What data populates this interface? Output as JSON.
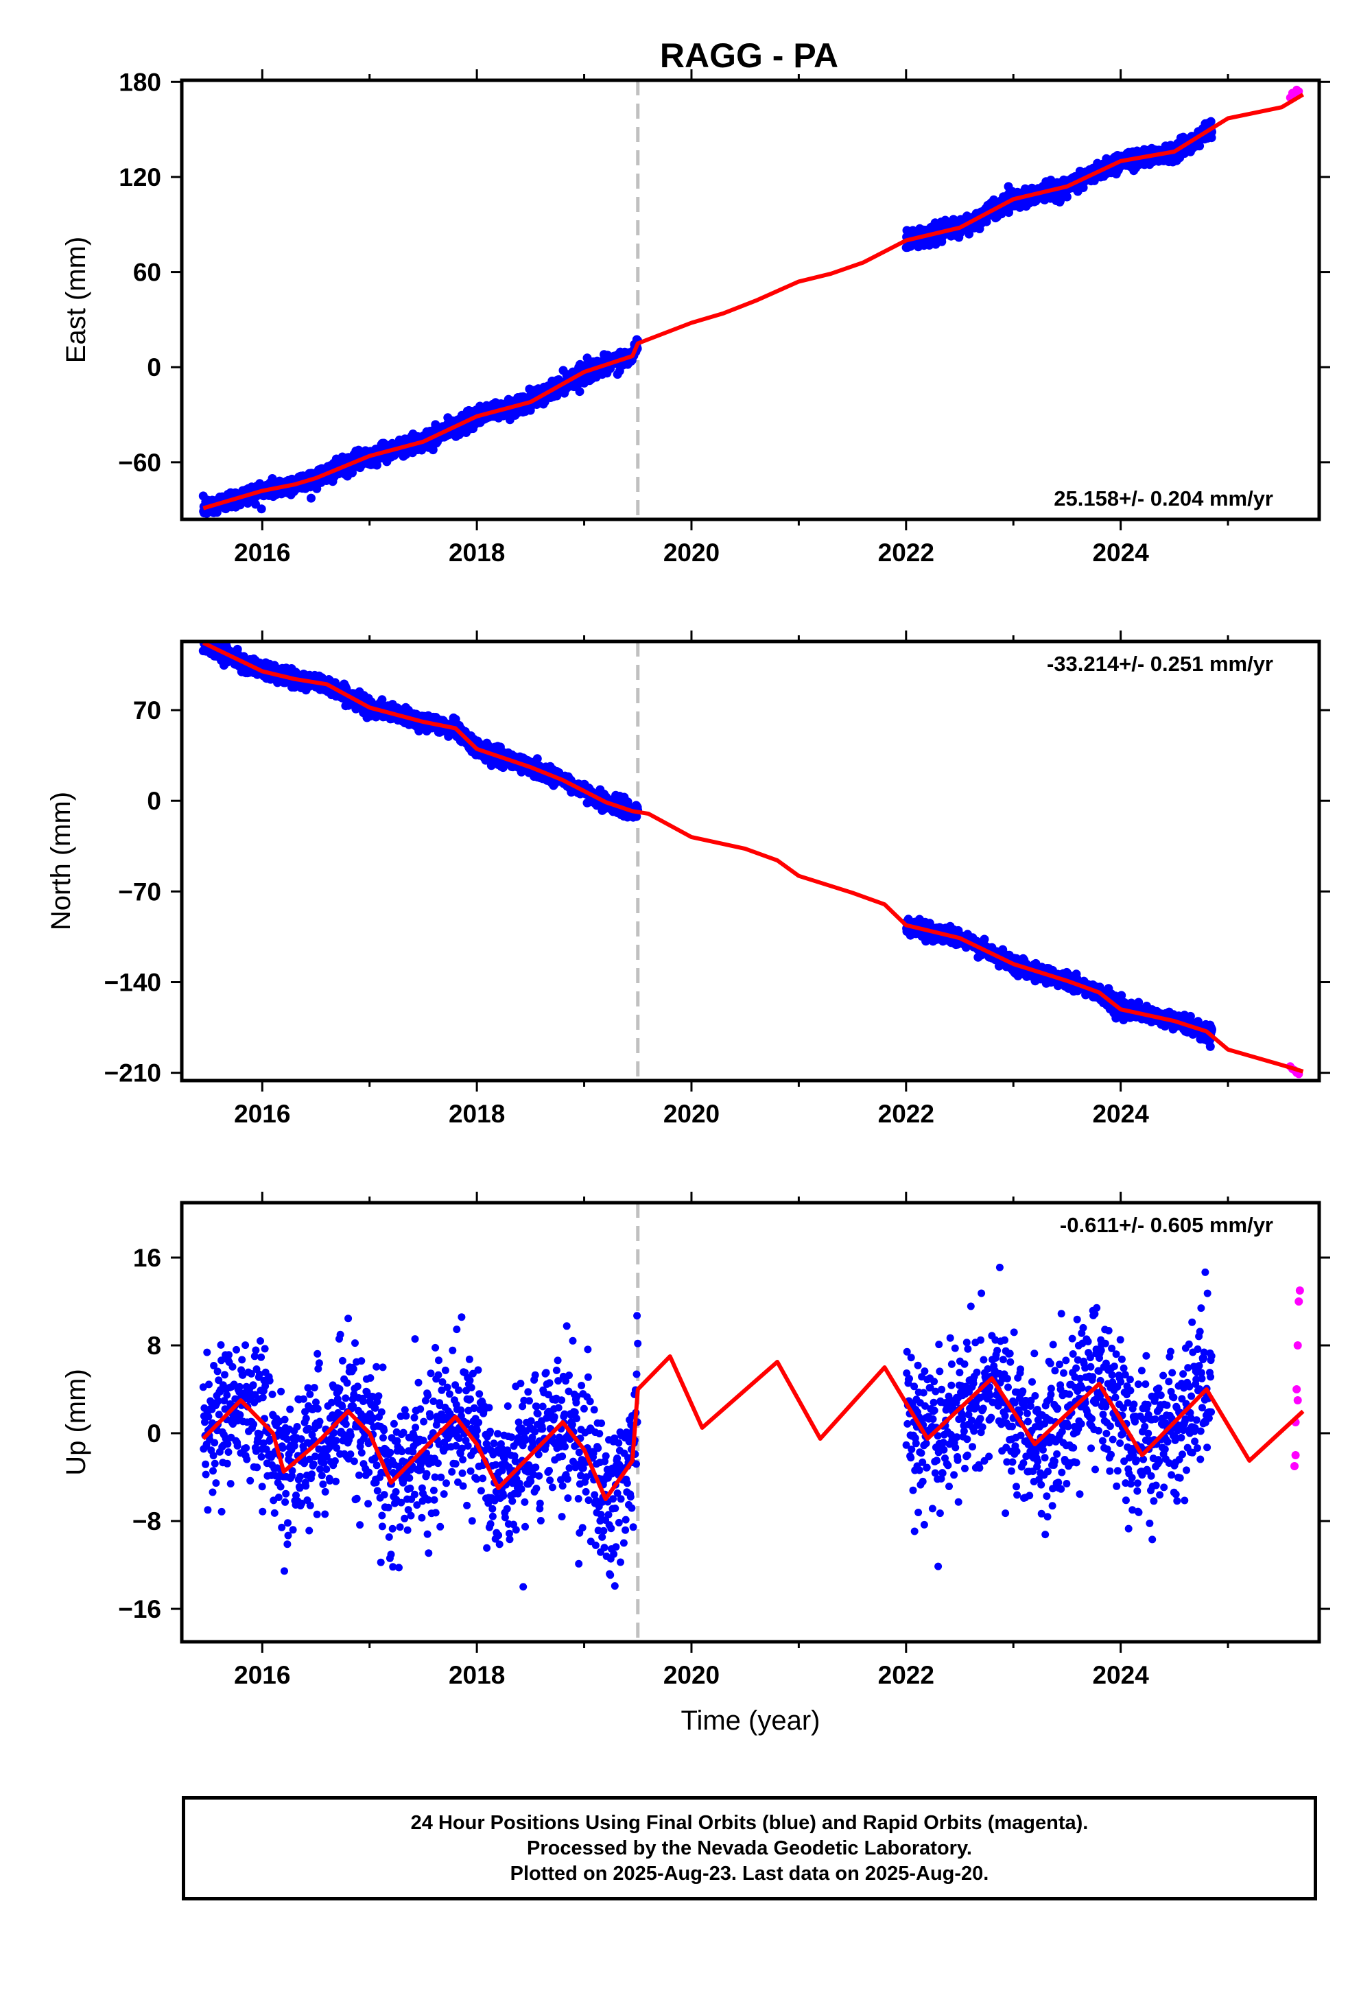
{
  "title": "RAGG - PA",
  "colors": {
    "final": "#0000ff",
    "rapid": "#ff00ff",
    "model": "#ff0000",
    "break": "#c0c0c0"
  },
  "chart_data": [
    {
      "type": "scatter",
      "name": "east",
      "ylabel": "East (mm)",
      "xlabel": "",
      "xlim": [
        2015.25,
        2025.85
      ],
      "ylim": [
        -96,
        181
      ],
      "yticks": [
        -60,
        0,
        60,
        120,
        180
      ],
      "xticks": [
        2016,
        2018,
        2020,
        2022,
        2024
      ],
      "rate_text": "25.158+/- 0.204 mm/yr",
      "rate_position": "bottom-right",
      "break_x": 2019.5,
      "gaps": [
        [
          2019.5,
          2022.0
        ],
        [
          2024.85,
          2025.55
        ]
      ],
      "model": [
        [
          2015.45,
          -89
        ],
        [
          2016.0,
          -78
        ],
        [
          2016.3,
          -74
        ],
        [
          2016.5,
          -70
        ],
        [
          2017.0,
          -56
        ],
        [
          2017.5,
          -47
        ],
        [
          2018.0,
          -31
        ],
        [
          2018.5,
          -22
        ],
        [
          2019.0,
          -3
        ],
        [
          2019.45,
          7
        ],
        [
          2019.5,
          15
        ],
        [
          2020.0,
          28
        ],
        [
          2020.3,
          34
        ],
        [
          2020.6,
          42
        ],
        [
          2021.0,
          54
        ],
        [
          2021.3,
          59
        ],
        [
          2021.6,
          66
        ],
        [
          2022.0,
          80
        ],
        [
          2022.5,
          88
        ],
        [
          2023.0,
          106
        ],
        [
          2023.5,
          114
        ],
        [
          2024.0,
          130
        ],
        [
          2024.5,
          136
        ],
        [
          2025.0,
          157
        ],
        [
          2025.5,
          164
        ],
        [
          2025.7,
          172
        ]
      ],
      "scatter_noise": 2.8,
      "rapid_points": [
        [
          2025.58,
          170
        ],
        [
          2025.6,
          173
        ],
        [
          2025.62,
          171
        ],
        [
          2025.64,
          175
        ],
        [
          2025.66,
          174
        ]
      ]
    },
    {
      "type": "scatter",
      "name": "north",
      "ylabel": "North (mm)",
      "xlabel": "",
      "xlim": [
        2015.25,
        2025.85
      ],
      "ylim": [
        -216,
        123
      ],
      "yticks": [
        -210,
        -140,
        -70,
        0,
        70
      ],
      "xticks": [
        2016,
        2018,
        2020,
        2022,
        2024
      ],
      "rate_text": "-33.214+/- 0.251 mm/yr",
      "rate_position": "top-right",
      "break_x": 2019.5,
      "gaps": [
        [
          2019.5,
          2022.0
        ],
        [
          2024.85,
          2025.55
        ]
      ],
      "model": [
        [
          2015.45,
          122
        ],
        [
          2015.7,
          112
        ],
        [
          2016.0,
          100
        ],
        [
          2016.3,
          94
        ],
        [
          2016.6,
          90
        ],
        [
          2017.0,
          72
        ],
        [
          2017.5,
          61
        ],
        [
          2017.8,
          56
        ],
        [
          2018.0,
          40
        ],
        [
          2018.5,
          26
        ],
        [
          2018.8,
          16
        ],
        [
          2019.2,
          -1
        ],
        [
          2019.45,
          -8
        ],
        [
          2019.6,
          -10
        ],
        [
          2020.0,
          -28
        ],
        [
          2020.5,
          -37
        ],
        [
          2020.8,
          -46
        ],
        [
          2021.0,
          -58
        ],
        [
          2021.5,
          -71
        ],
        [
          2021.8,
          -80
        ],
        [
          2022.0,
          -96
        ],
        [
          2022.5,
          -106
        ],
        [
          2023.0,
          -126
        ],
        [
          2023.5,
          -139
        ],
        [
          2023.8,
          -148
        ],
        [
          2024.0,
          -161
        ],
        [
          2024.5,
          -170
        ],
        [
          2024.8,
          -178
        ],
        [
          2025.0,
          -192
        ],
        [
          2025.5,
          -204
        ],
        [
          2025.7,
          -209
        ]
      ],
      "scatter_noise": 3.0,
      "rapid_points": [
        [
          2025.58,
          -205
        ],
        [
          2025.6,
          -207
        ],
        [
          2025.62,
          -208
        ],
        [
          2025.64,
          -210
        ],
        [
          2025.66,
          -211
        ]
      ]
    },
    {
      "type": "scatter",
      "name": "up",
      "ylabel": "Up (mm)",
      "xlabel": "Time (year)",
      "xlim": [
        2015.25,
        2025.85
      ],
      "ylim": [
        -19,
        21
      ],
      "yticks": [
        -16,
        -8,
        0,
        8,
        16
      ],
      "xticks": [
        2016,
        2018,
        2020,
        2022,
        2024
      ],
      "rate_text": "-0.611+/- 0.605 mm/yr",
      "rate_position": "top-right",
      "break_x": 2019.5,
      "gaps": [
        [
          2019.5,
          2022.0
        ],
        [
          2024.85,
          2025.5
        ]
      ],
      "model": [
        [
          2015.45,
          -0.5
        ],
        [
          2015.8,
          3.0
        ],
        [
          2016.1,
          0.0
        ],
        [
          2016.2,
          -3.5
        ],
        [
          2016.5,
          -1.0
        ],
        [
          2016.8,
          2.0
        ],
        [
          2017.0,
          0.0
        ],
        [
          2017.2,
          -4.5
        ],
        [
          2017.5,
          -1.5
        ],
        [
          2017.8,
          1.5
        ],
        [
          2018.0,
          -1.0
        ],
        [
          2018.2,
          -5.0
        ],
        [
          2018.5,
          -2.0
        ],
        [
          2018.8,
          1.0
        ],
        [
          2019.0,
          -1.5
        ],
        [
          2019.2,
          -6.0
        ],
        [
          2019.45,
          -2.5
        ],
        [
          2019.5,
          4.0
        ],
        [
          2019.8,
          7.0
        ],
        [
          2020.1,
          0.5
        ],
        [
          2020.8,
          6.5
        ],
        [
          2021.2,
          -0.5
        ],
        [
          2021.8,
          6.0
        ],
        [
          2022.2,
          -0.5
        ],
        [
          2022.8,
          5.0
        ],
        [
          2023.2,
          -1.0
        ],
        [
          2023.8,
          4.5
        ],
        [
          2024.2,
          -2.0
        ],
        [
          2024.8,
          4.0
        ],
        [
          2025.2,
          -2.5
        ],
        [
          2025.7,
          2.0
        ]
      ],
      "scatter_noise": 3.3,
      "rapid_points": [
        [
          2025.62,
          -3
        ],
        [
          2025.63,
          1
        ],
        [
          2025.64,
          4
        ],
        [
          2025.65,
          8
        ],
        [
          2025.66,
          12
        ],
        [
          2025.67,
          13
        ],
        [
          2025.63,
          -2
        ],
        [
          2025.65,
          3
        ]
      ]
    }
  ],
  "footer": {
    "line1": "24 Hour Positions Using Final Orbits (blue) and Rapid Orbits (magenta).",
    "line2": "Processed by the Nevada Geodetic Laboratory.",
    "line3": "Plotted on 2025-Aug-23. Last data on 2025-Aug-20."
  }
}
